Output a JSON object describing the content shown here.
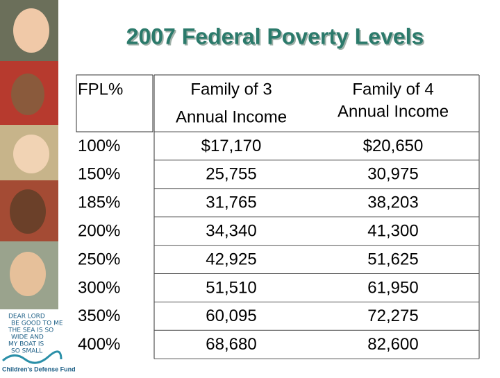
{
  "title": "2007 Federal Poverty Levels",
  "table": {
    "headers": [
      [
        "FPL%"
      ],
      [
        "Family of 3",
        "Annual Income"
      ],
      [
        "Family of 4",
        "Annual Income"
      ]
    ],
    "rows": [
      [
        "100%",
        "$17,170",
        "$20,650"
      ],
      [
        "150%",
        "25,755",
        "30,975"
      ],
      [
        "185%",
        "31,765",
        "38,203"
      ],
      [
        "200%",
        "34,340",
        "41,300"
      ],
      [
        "250%",
        "42,925",
        "51,625"
      ],
      [
        "300%",
        "51,510",
        "61,950"
      ],
      [
        "350%",
        "60,095",
        "72,275"
      ],
      [
        "400%",
        "68,680",
        "82,600"
      ]
    ]
  },
  "logo": {
    "poem": [
      "DEAR LORD",
      "BE GOOD TO ME",
      "THE SEA IS SO",
      "WIDE AND",
      "MY BOAT IS",
      "SO SMALL"
    ],
    "name": "Children's Defense Fund"
  }
}
